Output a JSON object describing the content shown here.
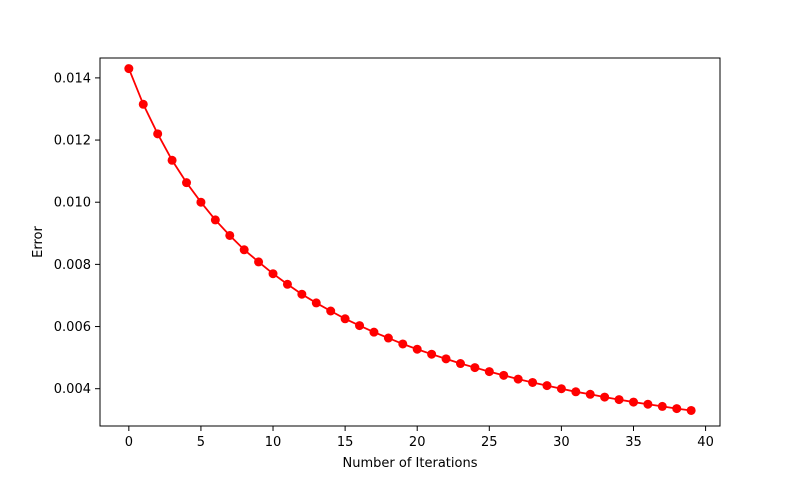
{
  "chart_data": {
    "type": "line",
    "title": "",
    "xlabel": "Number of Iterations",
    "ylabel": "Error",
    "xlim": [
      -2,
      41
    ],
    "ylim": [
      0.0028,
      0.01464
    ],
    "xticks": [
      0,
      5,
      10,
      15,
      20,
      25,
      30,
      35,
      40
    ],
    "xtick_labels": [
      "0",
      "5",
      "10",
      "15",
      "20",
      "25",
      "30",
      "35",
      "40"
    ],
    "yticks": [
      0.004,
      0.006,
      0.008,
      0.01,
      0.012,
      0.014
    ],
    "ytick_labels": [
      "0.004",
      "0.006",
      "0.008",
      "0.010",
      "0.012",
      "0.014"
    ],
    "grid": false,
    "legend": "none",
    "series": [
      {
        "color": "#ff0000",
        "marker": "circle",
        "x": [
          0,
          1,
          2,
          3,
          4,
          5,
          6,
          7,
          8,
          9,
          10,
          11,
          12,
          13,
          14,
          15,
          16,
          17,
          18,
          19,
          20,
          21,
          22,
          23,
          24,
          25,
          26,
          27,
          28,
          29,
          30,
          31,
          32,
          33,
          34,
          35,
          36,
          37,
          38,
          39
        ],
        "y": [
          0.0143,
          0.01315,
          0.0122,
          0.01135,
          0.01063,
          0.01,
          0.00943,
          0.00893,
          0.00847,
          0.00808,
          0.0077,
          0.00736,
          0.00704,
          0.00676,
          0.0065,
          0.00625,
          0.00603,
          0.00582,
          0.00563,
          0.00544,
          0.00527,
          0.00511,
          0.00496,
          0.00481,
          0.00468,
          0.00455,
          0.00443,
          0.00431,
          0.0042,
          0.0041,
          0.004,
          0.0039,
          0.00382,
          0.00373,
          0.00365,
          0.00357,
          0.0035,
          0.00343,
          0.00336,
          0.0033
        ]
      }
    ]
  }
}
